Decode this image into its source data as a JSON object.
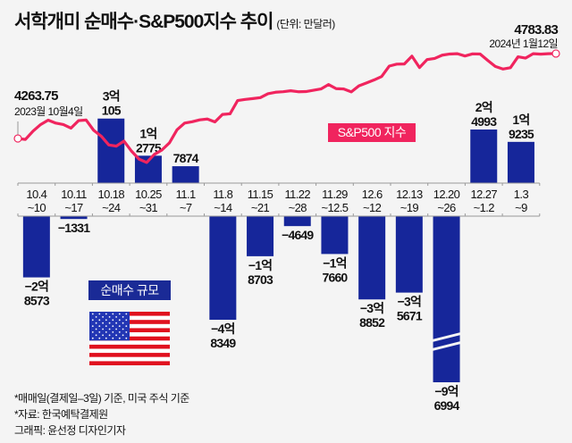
{
  "header": {
    "title": "서학개미 순매수·S&P500지수 추이",
    "unit": "(단위: 만달러)"
  },
  "legend": {
    "net_buy_label": "순매수 규모",
    "sp500_label": "S&P500 지수",
    "flag_icon": "us-flag-icon"
  },
  "annotations": {
    "start_value": "4263.75",
    "start_date": "2023월 10월4일",
    "end_value": "4783.83",
    "end_date": "2024년 1월12일"
  },
  "notes": [
    "*매매일(결제일–3일) 기준, 미국 주식 기준",
    "*자료: 한국예탁결제원",
    "그래픽: 윤선정 디자인기자"
  ],
  "colors": {
    "bar": "#16269a",
    "line": "#f0245e",
    "background": "#f4f4f4"
  },
  "chart_data": [
    {
      "type": "bar",
      "title": "서학개미 순매수",
      "unit": "만달러",
      "categories": [
        "10.4~10",
        "10.11~17",
        "10.18~24",
        "10.25~31",
        "11.1~7",
        "11.8~14",
        "11.15~21",
        "11.22~28",
        "11.29~12.5",
        "12.6~12",
        "12.13~19",
        "12.20~26",
        "12.27~1.2",
        "1.3~9"
      ],
      "category_lines": [
        [
          "10.4",
          "~10"
        ],
        [
          "10.11",
          "~17"
        ],
        [
          "10.18",
          "~24"
        ],
        [
          "10.25",
          "~31"
        ],
        [
          "11.1",
          "~7"
        ],
        [
          "11.8",
          "~14"
        ],
        [
          "11.15",
          "~21"
        ],
        [
          "11.22",
          "~28"
        ],
        [
          "11.29",
          "~12.5"
        ],
        [
          "12.6",
          "~12"
        ],
        [
          "12.13",
          "~19"
        ],
        [
          "12.20",
          "~26"
        ],
        [
          "12.27",
          "~1.2"
        ],
        [
          "1.3",
          "~9"
        ]
      ],
      "values": [
        -28573,
        -1331,
        30105,
        12775,
        7874,
        -48349,
        -18703,
        -4649,
        -17660,
        -38852,
        -35671,
        -96994,
        24993,
        19235
      ],
      "labels": [
        [
          "−2억",
          "8573"
        ],
        [
          "",
          "−1331"
        ],
        [
          "3억",
          "105"
        ],
        [
          "1억",
          "2775"
        ],
        [
          "",
          "7874"
        ],
        [
          "−4억",
          "8349"
        ],
        [
          "−1억",
          "8703"
        ],
        [
          "",
          "−4649"
        ],
        [
          "−1억",
          "7660"
        ],
        [
          "−3억",
          "8852"
        ],
        [
          "−3억",
          "5671"
        ],
        [
          "−9억",
          "6994"
        ],
        [
          "2억",
          "4993"
        ],
        [
          "1억",
          "9235"
        ]
      ],
      "broken_axis_bars": [
        "12.20~26"
      ]
    },
    {
      "type": "line",
      "title": "S&P500 지수",
      "x_range": [
        "2023-10-04",
        "2024-01-12"
      ],
      "values": [
        4263.75,
        4258,
        4309,
        4349,
        4376,
        4358,
        4349,
        4327,
        4373,
        4377,
        4314,
        4278,
        4224,
        4217,
        4248,
        4186,
        4137,
        4117,
        4166,
        4193,
        4237,
        4317,
        4358,
        4366,
        4378,
        4383,
        4365,
        4411,
        4415,
        4496,
        4503,
        4508,
        4514,
        4538,
        4547,
        4550,
        4556,
        4550,
        4551,
        4559,
        4567,
        4594,
        4569,
        4567,
        4549,
        4586,
        4604,
        4622,
        4643,
        4707,
        4719,
        4720,
        4768,
        4698,
        4747,
        4754,
        4774,
        4781,
        4783,
        4769,
        4782,
        4781,
        4742,
        4705,
        4689,
        4697,
        4764,
        4756,
        4783,
        4780,
        4783,
        4783.83
      ],
      "start_label": "4263.75",
      "end_label": "4783.83"
    }
  ]
}
